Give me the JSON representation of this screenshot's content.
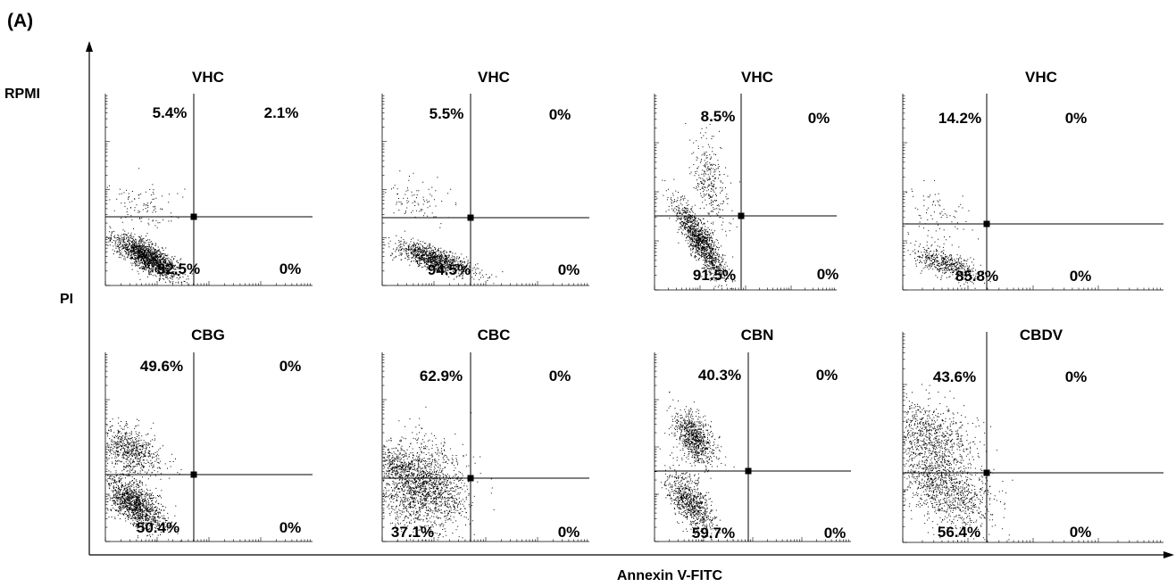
{
  "figure": {
    "panel_label": "(A)",
    "row_label": "RPMI",
    "y_axis_label": "PI",
    "x_axis_label": "Annexin V-FITC"
  },
  "chart_data": [
    {
      "type": "scatter",
      "title": "VHC",
      "quadrants": {
        "upper_left": "5.4%",
        "upper_right": "2.1%",
        "lower_left": "92.5%",
        "lower_right": "0%"
      }
    },
    {
      "type": "scatter",
      "title": "VHC",
      "quadrants": {
        "upper_left": "5.5%",
        "upper_right": "0%",
        "lower_left": "94.5%",
        "lower_right": "0%"
      }
    },
    {
      "type": "scatter",
      "title": "VHC",
      "quadrants": {
        "upper_left": "8.5%",
        "upper_right": "0%",
        "lower_left": "91.5%",
        "lower_right": "0%"
      }
    },
    {
      "type": "scatter",
      "title": "VHC",
      "quadrants": {
        "upper_left": "14.2%",
        "upper_right": "0%",
        "lower_left": "85.8%",
        "lower_right": "0%"
      }
    },
    {
      "type": "scatter",
      "title": "CBG",
      "quadrants": {
        "upper_left": "49.6%",
        "upper_right": "0%",
        "lower_left": "50.4%",
        "lower_right": "0%"
      }
    },
    {
      "type": "scatter",
      "title": "CBC",
      "quadrants": {
        "upper_left": "62.9%",
        "upper_right": "0%",
        "lower_left": "37.1%",
        "lower_right": "0%"
      }
    },
    {
      "type": "scatter",
      "title": "CBN",
      "quadrants": {
        "upper_left": "40.3%",
        "upper_right": "0%",
        "lower_left": "59.7%",
        "lower_right": "0%"
      }
    },
    {
      "type": "scatter",
      "title": "CBDV",
      "quadrants": {
        "upper_left": "43.6%",
        "upper_right": "0%",
        "lower_left": "56.4%",
        "lower_right": "0%"
      }
    }
  ]
}
